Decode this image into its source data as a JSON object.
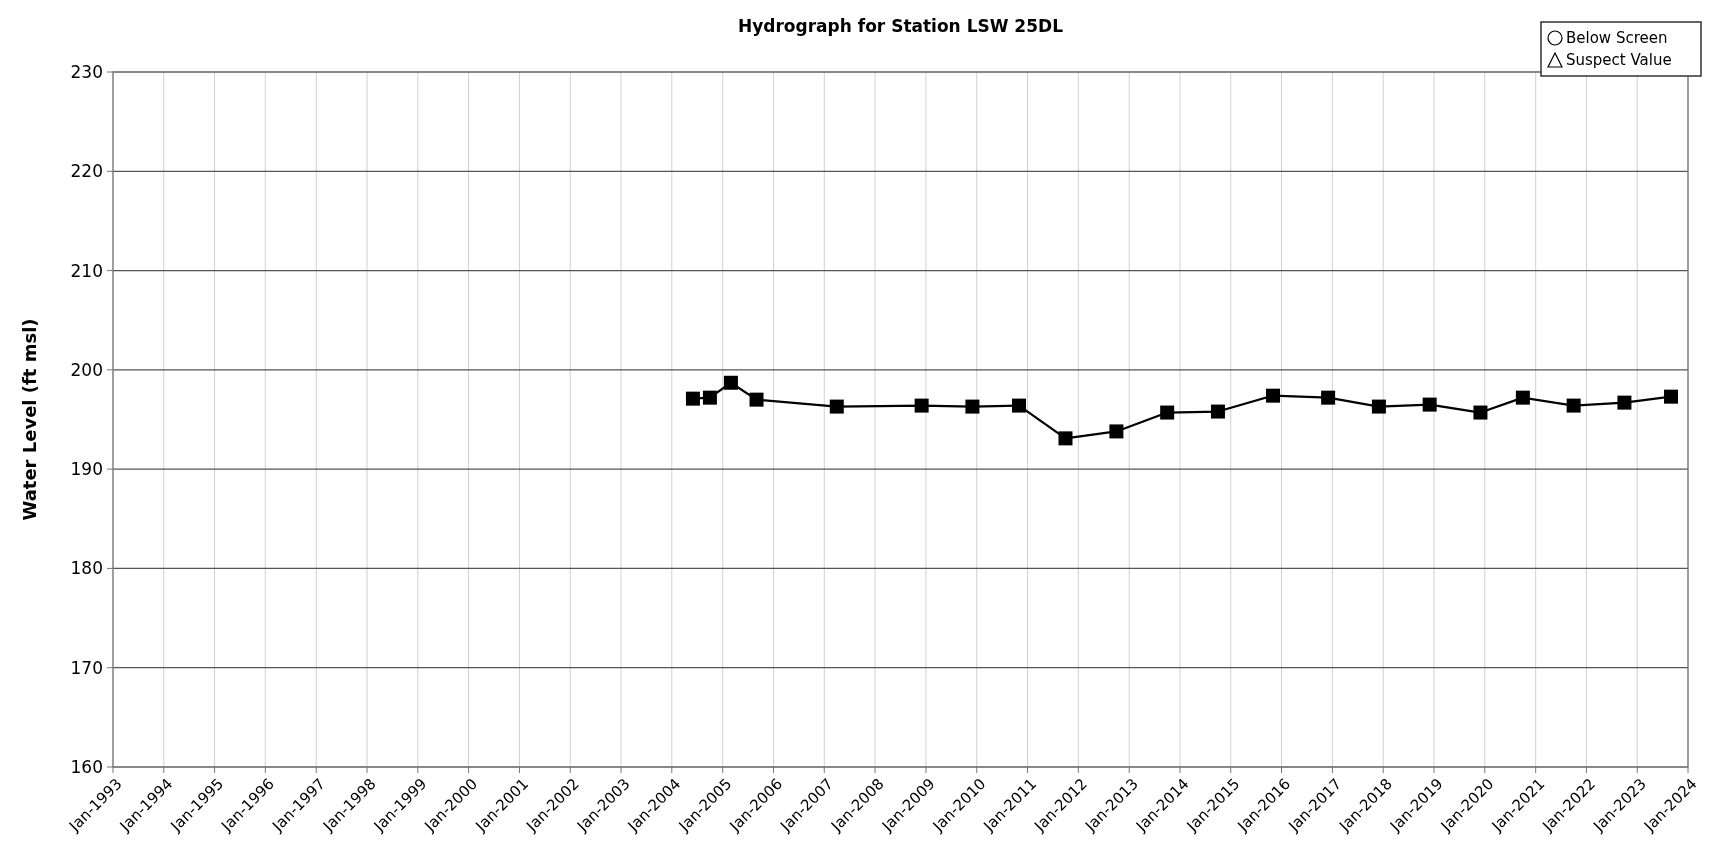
{
  "chart_data": {
    "type": "line",
    "title": "Hydrograph for Station LSW 25DL",
    "ylabel": "Water Level (ft msl)",
    "x": [
      "2004-06",
      "2004-10",
      "2005-03",
      "2005-09",
      "2007-04",
      "2008-12",
      "2009-12",
      "2010-11",
      "2011-10",
      "2012-10",
      "2013-10",
      "2014-10",
      "2015-11",
      "2016-12",
      "2017-12",
      "2018-12",
      "2019-12",
      "2020-10",
      "2021-10",
      "2022-10",
      "2023-09"
    ],
    "series": [
      {
        "type": "line",
        "color": "#000000",
        "marker": "square",
        "values": [
          197.1,
          197.2,
          198.7,
          197.0,
          196.3,
          196.4,
          196.3,
          196.4,
          193.1,
          193.8,
          195.7,
          195.8,
          197.4,
          197.2,
          196.3,
          196.5,
          195.7,
          197.2,
          196.4,
          196.7,
          197.3
        ]
      },
      {
        "type": "scatter",
        "name": "Below Screen",
        "color": "#000000",
        "marker": "circle",
        "values": [
          null,
          null,
          null,
          null,
          null,
          null,
          null,
          null,
          null,
          null,
          null,
          null,
          null,
          null,
          null,
          null,
          null,
          null,
          null,
          null,
          null
        ]
      },
      {
        "type": "scatter",
        "name": "Suspect Value",
        "color": "#000000",
        "marker": "triangle",
        "values": [
          null,
          null,
          null,
          null,
          null,
          null,
          null,
          null,
          null,
          null,
          null,
          null,
          null,
          null,
          null,
          null,
          null,
          null,
          null,
          null,
          null
        ]
      }
    ],
    "xlim": [
      "1993-01",
      "2024-01"
    ],
    "xticks": [
      {
        "value": "1993-01",
        "label": "Jan-1993"
      },
      {
        "value": "1994-01",
        "label": "Jan-1994"
      },
      {
        "value": "1995-01",
        "label": "Jan-1995"
      },
      {
        "value": "1996-01",
        "label": "Jan-1996"
      },
      {
        "value": "1997-01",
        "label": "Jan-1997"
      },
      {
        "value": "1998-01",
        "label": "Jan-1998"
      },
      {
        "value": "1999-01",
        "label": "Jan-1999"
      },
      {
        "value": "2000-01",
        "label": "Jan-2000"
      },
      {
        "value": "2001-01",
        "label": "Jan-2001"
      },
      {
        "value": "2002-01",
        "label": "Jan-2002"
      },
      {
        "value": "2003-01",
        "label": "Jan-2003"
      },
      {
        "value": "2004-01",
        "label": "Jan-2004"
      },
      {
        "value": "2005-01",
        "label": "Jan-2005"
      },
      {
        "value": "2006-01",
        "label": "Jan-2006"
      },
      {
        "value": "2007-01",
        "label": "Jan-2007"
      },
      {
        "value": "2008-01",
        "label": "Jan-2008"
      },
      {
        "value": "2009-01",
        "label": "Jan-2009"
      },
      {
        "value": "2010-01",
        "label": "Jan-2010"
      },
      {
        "value": "2011-01",
        "label": "Jan-2011"
      },
      {
        "value": "2012-01",
        "label": "Jan-2012"
      },
      {
        "value": "2013-01",
        "label": "Jan-2013"
      },
      {
        "value": "2014-01",
        "label": "Jan-2014"
      },
      {
        "value": "2015-01",
        "label": "Jan-2015"
      },
      {
        "value": "2016-01",
        "label": "Jan-2016"
      },
      {
        "value": "2017-01",
        "label": "Jan-2017"
      },
      {
        "value": "2018-01",
        "label": "Jan-2018"
      },
      {
        "value": "2019-01",
        "label": "Jan-2019"
      },
      {
        "value": "2020-01",
        "label": "Jan-2020"
      },
      {
        "value": "2021-01",
        "label": "Jan-2021"
      },
      {
        "value": "2022-01",
        "label": "Jan-2022"
      },
      {
        "value": "2023-01",
        "label": "Jan-2023"
      },
      {
        "value": "2024-01",
        "label": "Jan-2024"
      }
    ],
    "ylim": [
      160,
      230
    ],
    "yticks": [
      160,
      170,
      180,
      190,
      200,
      210,
      220,
      230
    ],
    "grid": true,
    "legend": "top right",
    "line_style": "solid"
  }
}
